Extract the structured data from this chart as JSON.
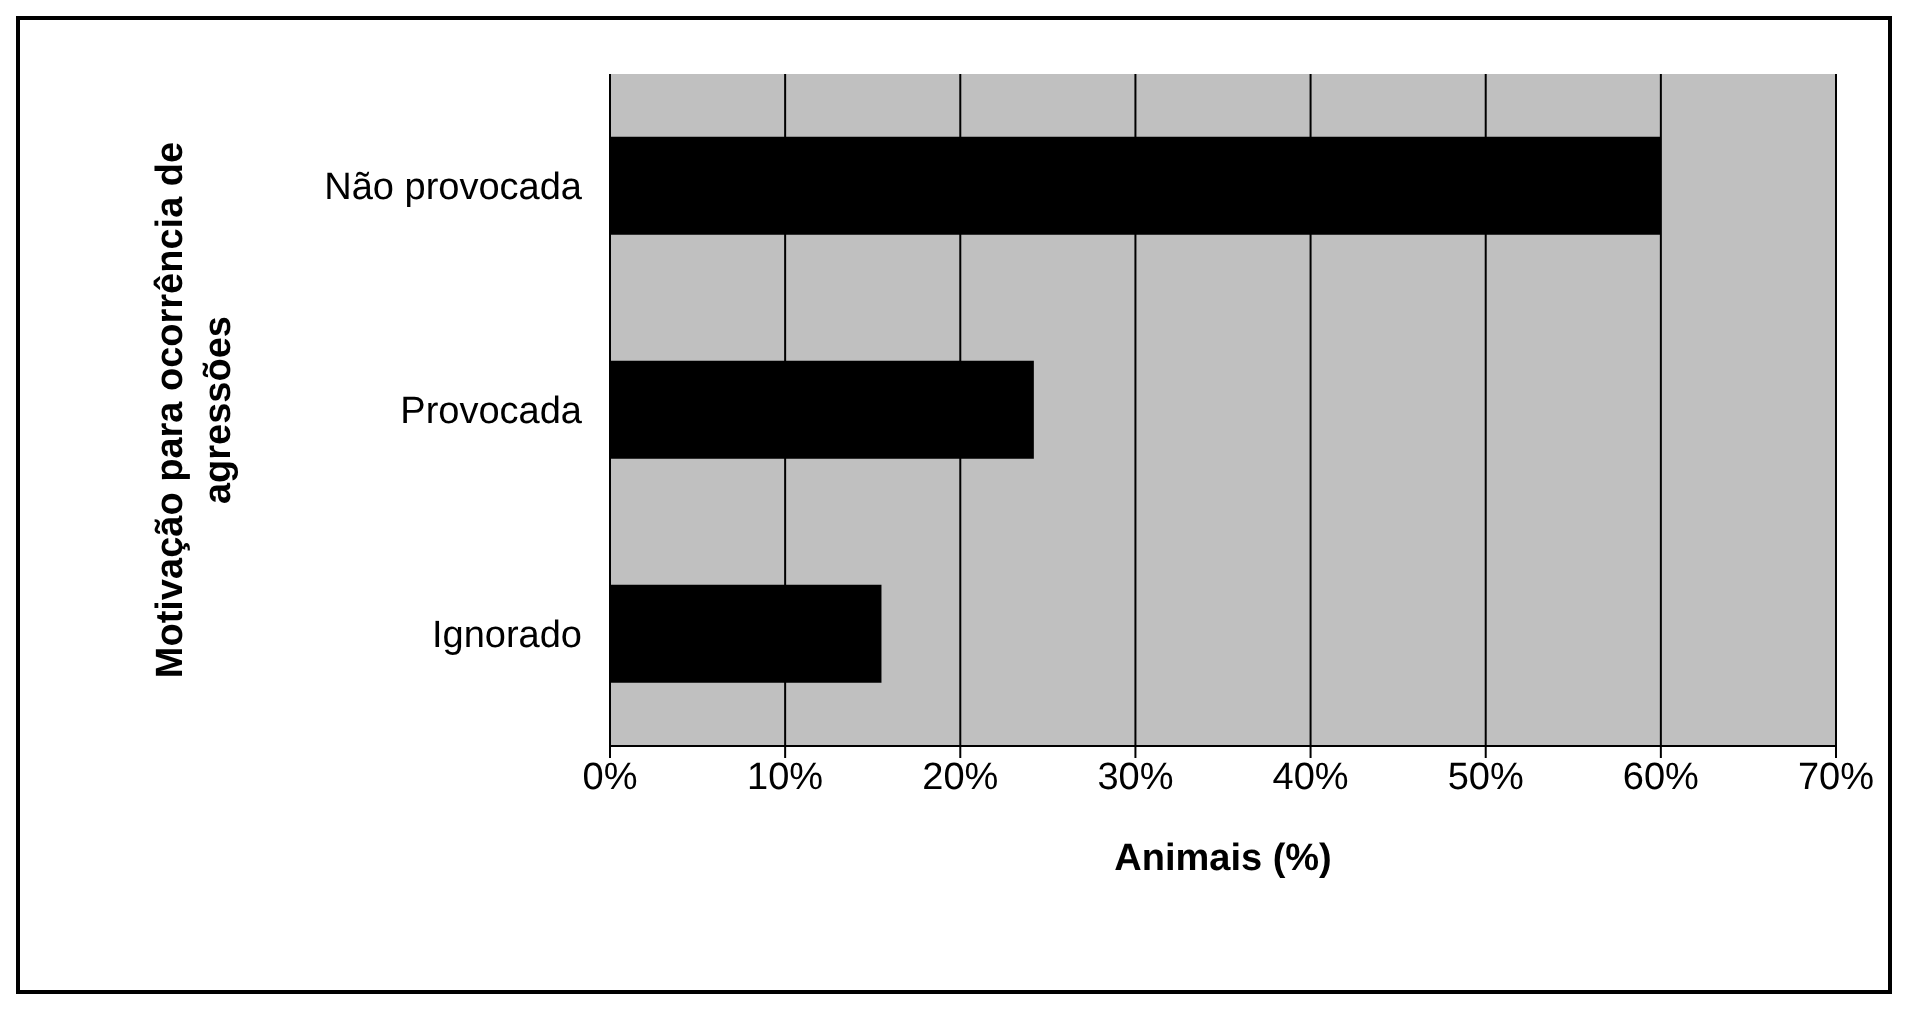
{
  "chart_data": {
    "type": "bar",
    "orientation": "horizontal",
    "categories": [
      "Não provocada",
      "Provocada",
      "Ignorado"
    ],
    "values": [
      60,
      24.2,
      15.5
    ],
    "color": "#000000",
    "xlabel": "Animais (%)",
    "ylabel": "Motivação para ocorrência de agressões",
    "xlim": [
      0,
      70
    ],
    "xticks": [
      {
        "value": 0,
        "label": "0%"
      },
      {
        "value": 10,
        "label": "10%"
      },
      {
        "value": 20,
        "label": "20%"
      },
      {
        "value": 30,
        "label": "30%"
      },
      {
        "value": 40,
        "label": "40%"
      },
      {
        "value": 50,
        "label": "50%"
      },
      {
        "value": 60,
        "label": "60%"
      },
      {
        "value": 70,
        "label": "70%"
      }
    ],
    "grid": "x",
    "legend": false
  }
}
